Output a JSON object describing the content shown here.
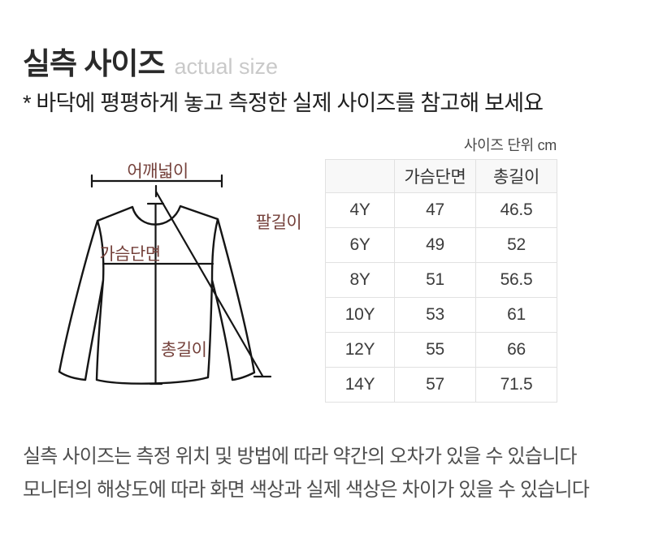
{
  "header": {
    "title_ko": "실측 사이즈",
    "title_en": "actual size",
    "subtitle": "* 바닥에 평평하게 놓고 측정한 실제 사이즈를 참고해 보세요",
    "unit_note": "사이즈 단위 cm"
  },
  "diagram": {
    "label_color": "#74403a",
    "line_color": "#151515",
    "labels": {
      "shoulder_width": "어깨넓이",
      "arm_length": "팔길이",
      "chest_width": "가슴단면",
      "total_length": "총길이"
    }
  },
  "size_table": {
    "columns": [
      "",
      "가슴단면",
      "총길이"
    ],
    "rows": [
      {
        "size": "4Y",
        "chest": "47",
        "length": "46.5"
      },
      {
        "size": "6Y",
        "chest": "49",
        "length": "52"
      },
      {
        "size": "8Y",
        "chest": "51",
        "length": "56.5"
      },
      {
        "size": "10Y",
        "chest": "53",
        "length": "61"
      },
      {
        "size": "12Y",
        "chest": "55",
        "length": "66"
      },
      {
        "size": "14Y",
        "chest": "57",
        "length": "71.5"
      }
    ]
  },
  "footnotes": [
    "실측 사이즈는 측정 위치 및 방법에 따라 약간의 오차가 있을 수 있습니다",
    "모니터의 해상도에 따라 화면 색상과 실제 색상은 차이가 있을 수 있습니다"
  ]
}
